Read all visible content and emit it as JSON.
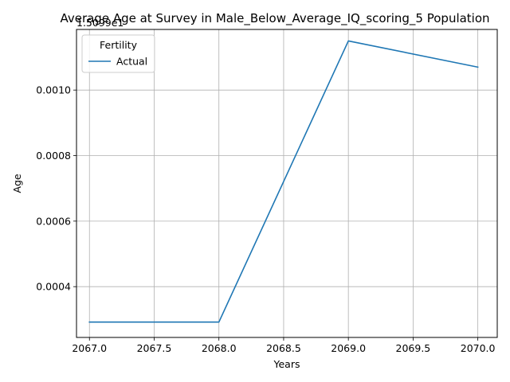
{
  "chart_data": {
    "type": "line",
    "title": "Average Age at Survey in Male_Below_Average_IQ_scoring_5 Population",
    "offset_text": "1.5099e1",
    "xlabel": "Years",
    "ylabel": "Age",
    "xlim": [
      2066.9,
      2070.15
    ],
    "ylim": [
      0.000245,
      0.001185
    ],
    "x_ticks": [
      2067.0,
      2067.5,
      2068.0,
      2068.5,
      2069.0,
      2069.5,
      2070.0
    ],
    "x_tick_labels": [
      "2067.0",
      "2067.5",
      "2068.0",
      "2068.5",
      "2069.0",
      "2069.5",
      "2070.0"
    ],
    "y_ticks": [
      0.0004,
      0.0006,
      0.0008,
      0.001
    ],
    "y_tick_labels": [
      "0.0004",
      "0.0006",
      "0.0008",
      "0.0010"
    ],
    "grid": true,
    "legend": {
      "title": "Fertility",
      "placement": "upper-left"
    },
    "series": [
      {
        "name": "Actual",
        "color": "#1f77b4",
        "x": [
          2067,
          2068,
          2069,
          2070
        ],
        "y": [
          0.000292,
          0.000292,
          0.00115,
          0.00107
        ]
      }
    ]
  }
}
